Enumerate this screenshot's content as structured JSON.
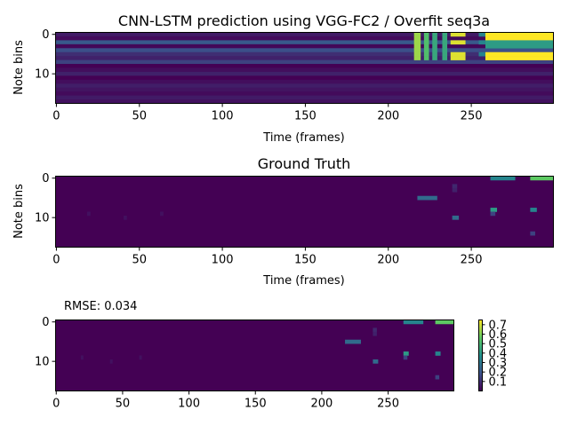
{
  "chart_data": [
    {
      "type": "heatmap",
      "title": "CNN-LSTM prediction using VGG-FC2 / Overfit seq3a",
      "xlabel": "Time (frames)",
      "ylabel": "Note bins",
      "x_range": [
        0,
        299
      ],
      "y_range": [
        0,
        17
      ],
      "y_inverted": true,
      "xticks": [
        "0",
        "50",
        "100",
        "150",
        "200",
        "250"
      ],
      "yticks": [
        "0",
        "10"
      ],
      "colormap": "viridis",
      "colormap_stops": [
        "#440154",
        "#3b528b",
        "#21908d",
        "#5dc963",
        "#fde725"
      ],
      "baseline_rows": [
        0.08,
        0.03,
        0.28,
        0.02,
        0.24,
        0.14,
        0.1,
        0.2,
        0.0,
        0.04,
        0.1,
        0.0,
        0.04,
        0.09,
        0.06,
        0.03,
        0.08,
        0.05
      ],
      "bands": [
        {
          "x": [
            216,
            219
          ],
          "rows": [
            0,
            1,
            2,
            3,
            4,
            5,
            6
          ],
          "value": 0.85
        },
        {
          "x": [
            222,
            224
          ],
          "rows": [
            0,
            1,
            2,
            3,
            4,
            5,
            6
          ],
          "value": 0.7
        },
        {
          "x": [
            227,
            229
          ],
          "rows": [
            0,
            1,
            2,
            3,
            4,
            5,
            6
          ],
          "value": 0.6
        },
        {
          "x": [
            233,
            235
          ],
          "rows": [
            0,
            1,
            2,
            3,
            4,
            5,
            6
          ],
          "value": 0.6
        },
        {
          "x": [
            238,
            246
          ],
          "rows": [
            0,
            2,
            5,
            6
          ],
          "value": 0.95
        },
        {
          "x": [
            255,
            258
          ],
          "rows": [
            0,
            2,
            5
          ],
          "value": 0.45
        },
        {
          "x": [
            259,
            299
          ],
          "rows": [
            0,
            1,
            5,
            6
          ],
          "value": 1.0
        },
        {
          "x": [
            259,
            299
          ],
          "rows": [
            2,
            3
          ],
          "value": 0.55
        }
      ]
    },
    {
      "type": "heatmap",
      "title": "Ground Truth",
      "xlabel": "Time (frames)",
      "ylabel": "Note bins",
      "x_range": [
        0,
        299
      ],
      "y_range": [
        0,
        17
      ],
      "y_inverted": true,
      "xticks": [
        "0",
        "50",
        "100",
        "150",
        "200",
        "250"
      ],
      "yticks": [
        "0",
        "10"
      ],
      "colormap": "viridis",
      "cells": [
        {
          "x": [
            19,
            20
          ],
          "row": 9,
          "value": 0.05
        },
        {
          "x": [
            41,
            42
          ],
          "row": 10,
          "value": 0.05
        },
        {
          "x": [
            63,
            64
          ],
          "row": 9,
          "value": 0.05
        },
        {
          "x": [
            218,
            229
          ],
          "row": 5,
          "value": 0.35
        },
        {
          "x": [
            239,
            241
          ],
          "row": 2,
          "value": 0.12
        },
        {
          "x": [
            239,
            241
          ],
          "row": 3,
          "value": 0.1
        },
        {
          "x": [
            239,
            242
          ],
          "row": 10,
          "value": 0.35
        },
        {
          "x": [
            262,
            276
          ],
          "row": 0,
          "value": 0.45
        },
        {
          "x": [
            262,
            265
          ],
          "row": 8,
          "value": 0.55
        },
        {
          "x": [
            262,
            264
          ],
          "row": 9,
          "value": 0.2
        },
        {
          "x": [
            286,
            299
          ],
          "row": 0,
          "value": 0.75
        },
        {
          "x": [
            286,
            289
          ],
          "row": 8,
          "value": 0.45
        },
        {
          "x": [
            286,
            288
          ],
          "row": 14,
          "value": 0.2
        }
      ]
    },
    {
      "type": "heatmap",
      "title": "",
      "annotation": "RMSE: 0.034",
      "xlabel": "",
      "ylabel": "",
      "x_range": [
        0,
        299
      ],
      "y_range": [
        0,
        17
      ],
      "y_inverted": true,
      "xticks": [
        "0",
        "50",
        "100",
        "150",
        "200",
        "250"
      ],
      "yticks": [
        "0",
        "10"
      ],
      "colormap": "viridis",
      "colorbar": {
        "range": [
          0.0,
          0.75
        ],
        "ticks": [
          "0.1",
          "0.2",
          "0.3",
          "0.4",
          "0.5",
          "0.6",
          "0.7"
        ]
      },
      "cells": [
        {
          "x": [
            19,
            20
          ],
          "row": 9,
          "value": 0.05
        },
        {
          "x": [
            41,
            42
          ],
          "row": 10,
          "value": 0.05
        },
        {
          "x": [
            63,
            64
          ],
          "row": 9,
          "value": 0.05
        },
        {
          "x": [
            218,
            229
          ],
          "row": 5,
          "value": 0.35
        },
        {
          "x": [
            239,
            241
          ],
          "row": 2,
          "value": 0.12
        },
        {
          "x": [
            239,
            241
          ],
          "row": 3,
          "value": 0.1
        },
        {
          "x": [
            239,
            242
          ],
          "row": 10,
          "value": 0.35
        },
        {
          "x": [
            262,
            276
          ],
          "row": 0,
          "value": 0.45
        },
        {
          "x": [
            262,
            265
          ],
          "row": 8,
          "value": 0.55
        },
        {
          "x": [
            262,
            264
          ],
          "row": 9,
          "value": 0.2
        },
        {
          "x": [
            286,
            299
          ],
          "row": 0,
          "value": 0.75
        },
        {
          "x": [
            286,
            289
          ],
          "row": 8,
          "value": 0.45
        },
        {
          "x": [
            286,
            288
          ],
          "row": 14,
          "value": 0.2
        }
      ]
    }
  ]
}
